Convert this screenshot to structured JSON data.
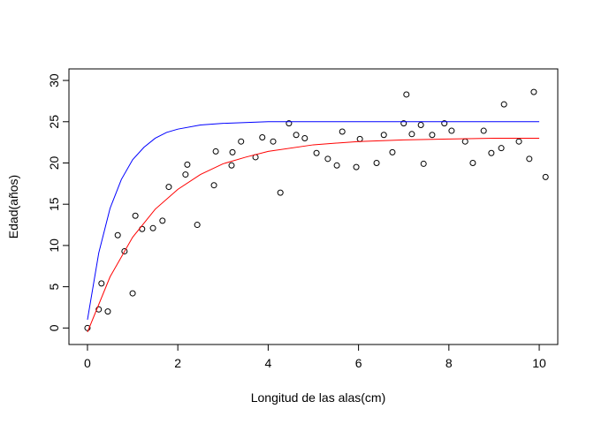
{
  "chart_data": {
    "type": "scatter",
    "xlabel": "Longitud de las alas(cm)",
    "ylabel": "Edad(años)",
    "xlim": [
      -0.41,
      10.41
    ],
    "ylim": [
      -2.0,
      31.4
    ],
    "xticks": [
      0,
      2,
      4,
      6,
      8,
      10
    ],
    "yticks": [
      0,
      5,
      10,
      15,
      20,
      25,
      30
    ],
    "series": [
      {
        "type": "scatter",
        "color": "#000000",
        "x": [
          0,
          0.25,
          0.31,
          0.45,
          0.67,
          0.82,
          1.0,
          1.06,
          1.21,
          1.45,
          1.66,
          1.8,
          2.17,
          2.21,
          2.43,
          2.8,
          2.84,
          3.19,
          3.21,
          3.4,
          3.72,
          3.87,
          4.11,
          4.27,
          4.46,
          4.62,
          4.81,
          5.07,
          5.32,
          5.52,
          5.64,
          5.95,
          6.03,
          6.4,
          6.56,
          6.75,
          7.0,
          7.06,
          7.18,
          7.38,
          7.44,
          7.63,
          7.9,
          8.06,
          8.36,
          8.53,
          8.77,
          8.94,
          9.16,
          9.22,
          9.55,
          9.78,
          9.88,
          10.14
        ],
        "values": [
          0,
          2.25,
          5.4,
          2.0,
          11.25,
          9.3,
          4.2,
          13.6,
          12.0,
          12.1,
          13.0,
          17.1,
          18.6,
          19.8,
          12.5,
          17.3,
          21.4,
          19.7,
          21.3,
          22.6,
          20.7,
          23.1,
          22.6,
          16.4,
          24.8,
          23.4,
          23.0,
          21.2,
          20.5,
          19.7,
          23.8,
          19.5,
          22.9,
          20.0,
          23.4,
          21.3,
          24.8,
          28.3,
          23.5,
          24.6,
          19.9,
          23.4,
          24.8,
          23.9,
          22.6,
          20.0,
          23.9,
          21.2,
          21.8,
          27.1,
          22.6,
          20.5,
          28.6,
          18.3
        ]
      },
      {
        "type": "line",
        "color": "#0000ff",
        "x": [
          0,
          0.25,
          0.5,
          0.75,
          1,
          1.25,
          1.5,
          1.75,
          2,
          2.5,
          3,
          4,
          5,
          6,
          7,
          8,
          9,
          10
        ],
        "values": [
          1.0,
          9.1,
          14.5,
          18.0,
          20.4,
          21.9,
          23.0,
          23.7,
          24.1,
          24.6,
          24.8,
          25.0,
          25.0,
          25.0,
          25.0,
          25.0,
          25.0,
          25.0
        ]
      },
      {
        "type": "line",
        "color": "#ff0000",
        "x": [
          0,
          0.5,
          1,
          1.5,
          2,
          2.5,
          3,
          3.5,
          4,
          5,
          6,
          7,
          8,
          9,
          10
        ],
        "values": [
          -0.5,
          6.2,
          11.0,
          14.4,
          16.8,
          18.6,
          19.9,
          20.7,
          21.4,
          22.2,
          22.6,
          22.8,
          22.9,
          23.0,
          23.0
        ]
      }
    ]
  }
}
